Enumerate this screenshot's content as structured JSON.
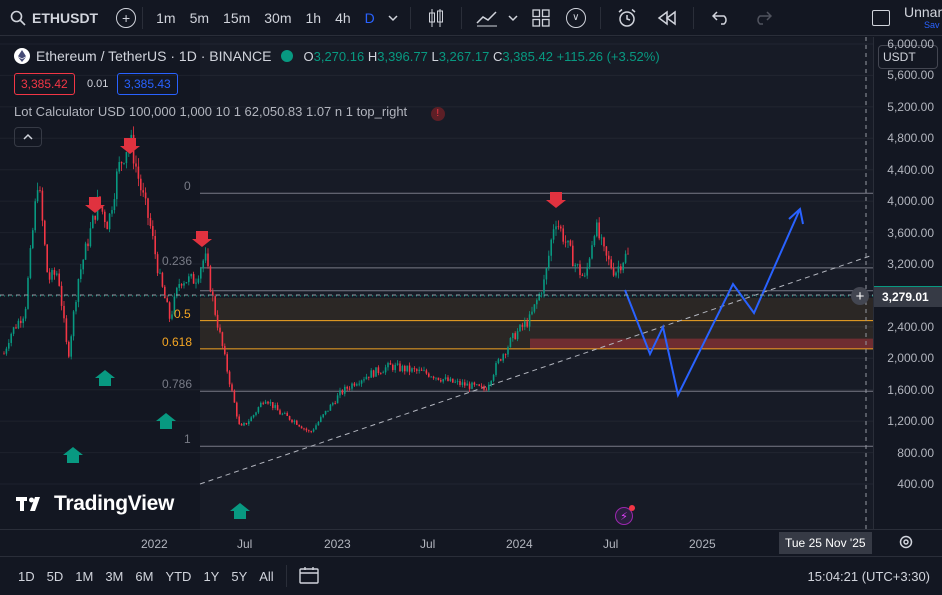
{
  "toolbar": {
    "symbol": "ETHUSDT",
    "intervals": [
      "1m",
      "5m",
      "15m",
      "30m",
      "1h",
      "4h",
      "D"
    ],
    "active_interval": "D",
    "layout_name": "Unnar",
    "layout_sub": "Sav"
  },
  "legend": {
    "title": "Ethereum / TetherUS · 1D · BINANCE",
    "open_label": "O",
    "open": "3,270.16",
    "high_label": "H",
    "high": "3,396.77",
    "low_label": "L",
    "low": "3,267.17",
    "close_label": "C",
    "close": "3,385.42",
    "change": "+115.26 (+3.52%)",
    "sell_price": "3,385.42",
    "spread": "0.01",
    "buy_price": "3,385.43"
  },
  "indicator": {
    "text": "Lot Calculator USD 100,000 1,000 10 1 62,050.83 1.07 n 1 top_right"
  },
  "price_axis": {
    "currency": "USDT",
    "labels": [
      "6,000.00",
      "5,600.00",
      "5,200.00",
      "4,800.00",
      "4,400.00",
      "4,000.00",
      "3,600.00",
      "3,200.00",
      "2,800.00",
      "2,400.00",
      "2,000.00",
      "1,600.00",
      "1,200.00",
      "800.00",
      "400.00"
    ],
    "current_price": "3,279.01",
    "current_price_top_hidden": "3,385.42"
  },
  "fib_levels": [
    {
      "label": "0",
      "value": 4100
    },
    {
      "label": "0.236",
      "value": 3150
    },
    {
      "label": "0.5",
      "value": 2480
    },
    {
      "label": "0.618",
      "value": 2120
    },
    {
      "label": "0.786",
      "value": 1580
    },
    {
      "label": "1",
      "value": 880
    }
  ],
  "time_axis": {
    "labels": [
      "2022",
      "Jul",
      "2023",
      "Jul",
      "2024",
      "Jul",
      "2025"
    ],
    "crosshair_date": "Tue 25 Nov '25"
  },
  "bottombar": {
    "ranges": [
      "1D",
      "5D",
      "1M",
      "3M",
      "6M",
      "YTD",
      "1Y",
      "5Y",
      "All"
    ],
    "clock": "15:04:21 (UTC+3:30)"
  },
  "watermark": "TradingView",
  "colors": {
    "up": "#089981",
    "down": "#f23645",
    "projection": "#2962ff",
    "fib_orange": "#f5a623",
    "accent": "#2962ff"
  }
}
